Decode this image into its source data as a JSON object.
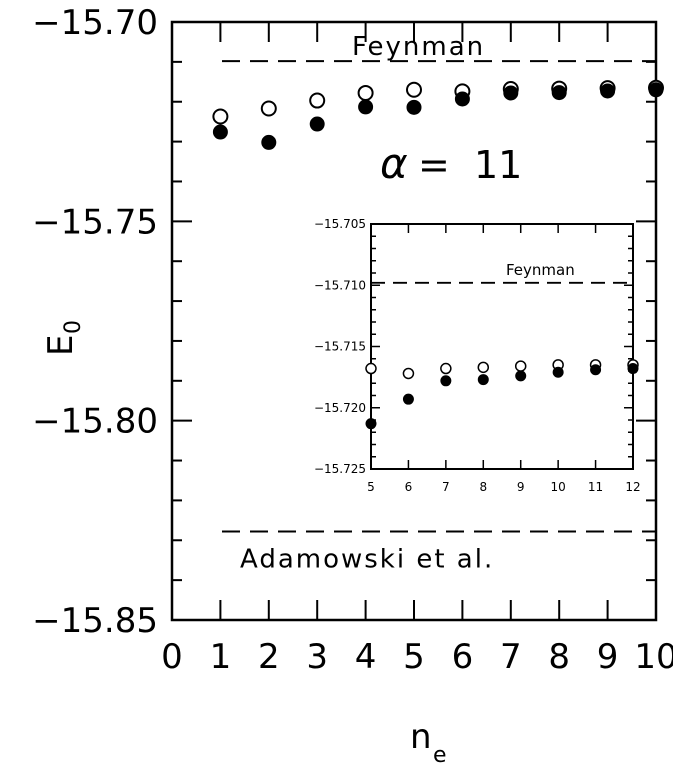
{
  "chart_data": [
    {
      "type": "scatter",
      "title": "",
      "xlabel": "n",
      "xlabel_sub": "e",
      "ylabel": "E",
      "ylabel_sub": "0",
      "xlim": [
        0,
        10
      ],
      "ylim": [
        -15.85,
        -15.7
      ],
      "xticks": [
        "0",
        "1",
        "2",
        "3",
        "4",
        "5",
        "6",
        "7",
        "8",
        "9",
        "10"
      ],
      "yticks": [
        "-15.70",
        "-15.75",
        "-15.80",
        "-15.85"
      ],
      "annotation": {
        "symbol": "α",
        "text": "=  11"
      },
      "reference_lines": [
        {
          "label": "Feynman",
          "y": -15.7098
        },
        {
          "label": "Adamowski et al.",
          "y": -15.8278
        }
      ],
      "series": [
        {
          "marker": "open-circle",
          "x": [
            1,
            2,
            3,
            4,
            5,
            6,
            7,
            8,
            9,
            10
          ],
          "y": [
            -15.7237,
            -15.7217,
            -15.7197,
            -15.7178,
            -15.717,
            -15.7174,
            -15.7168,
            -15.7167,
            -15.7166,
            -15.7165
          ]
        },
        {
          "marker": "filled-circle",
          "x": [
            1,
            2,
            3,
            4,
            5,
            6,
            7,
            8,
            9,
            10
          ],
          "y": [
            -15.7276,
            -15.7302,
            -15.7256,
            -15.7213,
            -15.7214,
            -15.7193,
            -15.7178,
            -15.7177,
            -15.7173,
            -15.717
          ]
        }
      ]
    },
    {
      "type": "scatter",
      "title": "",
      "xlabel": "",
      "ylabel": "",
      "xlim": [
        5,
        12
      ],
      "ylim": [
        -15.725,
        -15.705
      ],
      "xticks": [
        "5",
        "6",
        "7",
        "8",
        "9",
        "10",
        "11",
        "12"
      ],
      "yticks": [
        "-15.705",
        "-15.710",
        "-15.715",
        "-15.720",
        "-15.725"
      ],
      "reference_lines": [
        {
          "label": "Feynman",
          "y": -15.7098
        }
      ],
      "series": [
        {
          "marker": "open-circle",
          "x": [
            5,
            6,
            7,
            8,
            9,
            10,
            11,
            12
          ],
          "y": [
            -15.7168,
            -15.7172,
            -15.7168,
            -15.7167,
            -15.7166,
            -15.7165,
            -15.7165,
            -15.7165
          ]
        },
        {
          "marker": "filled-circle",
          "x": [
            5,
            6,
            7,
            8,
            9,
            10,
            11,
            12
          ],
          "y": [
            -15.7213,
            -15.7193,
            -15.7178,
            -15.7177,
            -15.7174,
            -15.7171,
            -15.7169,
            -15.7168
          ]
        }
      ]
    }
  ]
}
